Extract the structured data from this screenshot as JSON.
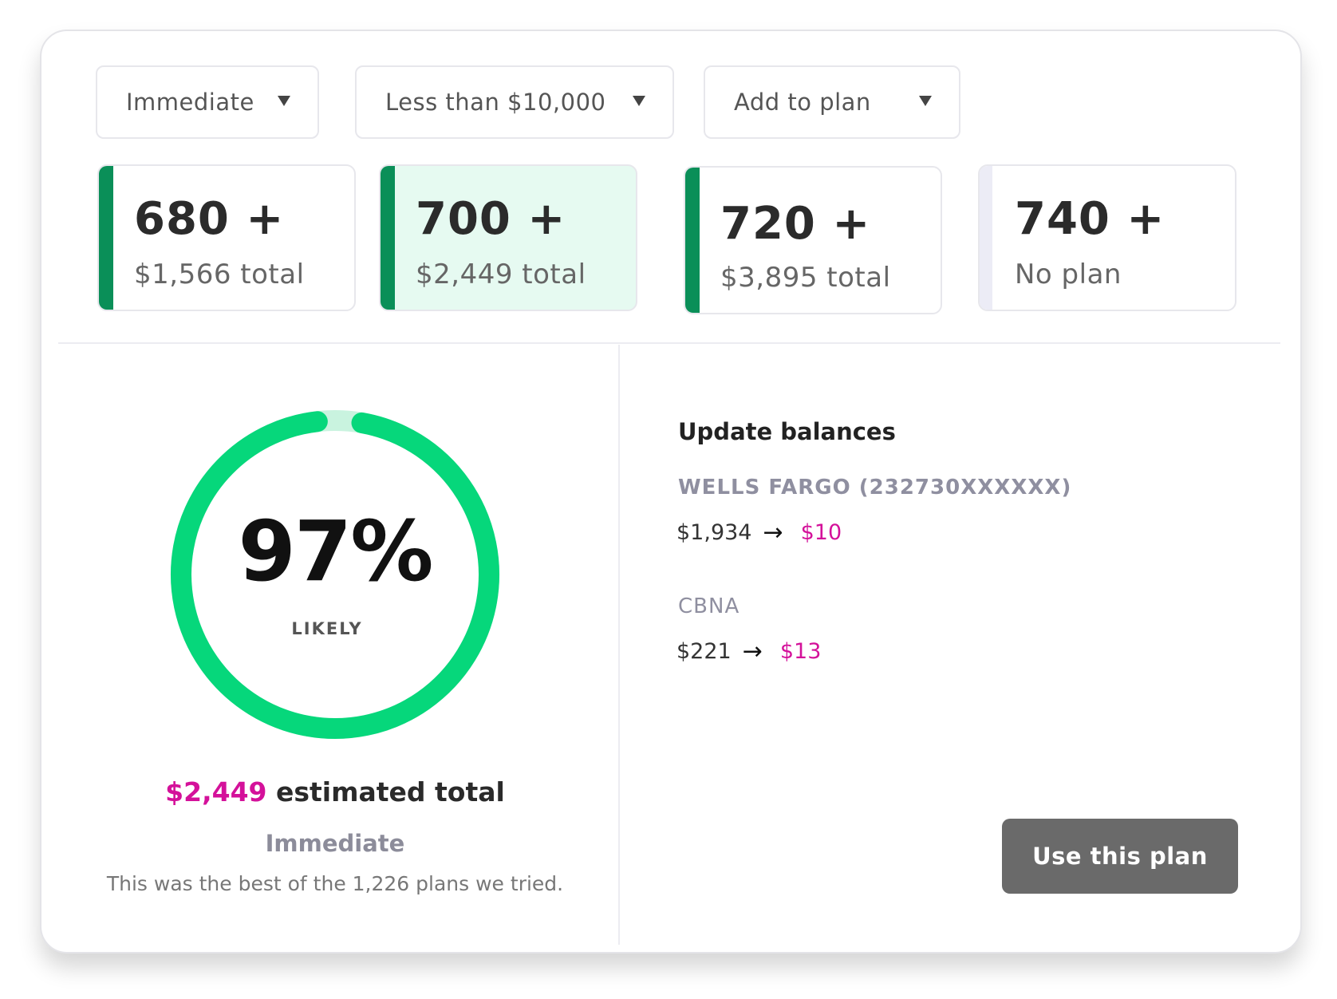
{
  "filters": {
    "timing": "Immediate",
    "amount": "Less than $10,000",
    "plan": "Add to plan"
  },
  "tiers": [
    {
      "score": "680 +",
      "total": "$1,566 total",
      "selected": false,
      "has_plan": true
    },
    {
      "score": "700 +",
      "total": "$2,449 total",
      "selected": true,
      "has_plan": true
    },
    {
      "score": "720 +",
      "total": "$3,895 total",
      "selected": false,
      "has_plan": true
    },
    {
      "score": "740 +",
      "total": "No plan",
      "selected": false,
      "has_plan": false
    }
  ],
  "likelihood": {
    "percent_label": "97%",
    "percent_value": 97,
    "label": "LIKELY",
    "ring_color": "#06d77b",
    "track_color": "#c9f3df"
  },
  "estimate": {
    "amount": "$2,449",
    "suffix": "estimated total",
    "timing": "Immediate",
    "note": "This was the best of the 1,226 plans we tried."
  },
  "balances": {
    "title": "Update balances",
    "accounts": [
      {
        "name": "WELLS FARGO (232730XXXXXX)",
        "from": "$1,934",
        "to": "$10"
      },
      {
        "name": "CBNA",
        "from": "$221",
        "to": "$13"
      }
    ]
  },
  "actions": {
    "use_plan": "Use this plan"
  },
  "colors": {
    "accent_green": "#0a8f58",
    "selected_bg": "#e6faf1",
    "highlight": "#d4119a"
  }
}
